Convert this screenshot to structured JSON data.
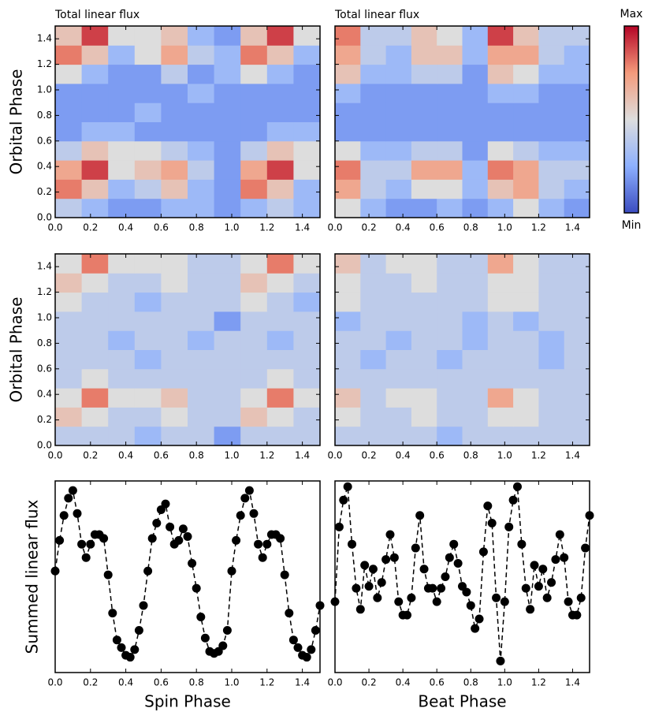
{
  "chart_data": [
    {
      "type": "heatmap",
      "title": "Total linear flux",
      "ylabel": "Orbital Phase",
      "xlim": [
        0,
        1.5
      ],
      "ylim": [
        0,
        1.5
      ],
      "clim": [
        0,
        10
      ],
      "xticks": [
        {
          "value": 0,
          "label": "0.0"
        },
        {
          "value": 0.2,
          "label": "0.2"
        },
        {
          "value": 0.4,
          "label": "0.4"
        },
        {
          "value": 0.6,
          "label": "0.6"
        },
        {
          "value": 0.8,
          "label": "0.8"
        },
        {
          "value": 1,
          "label": "1.0"
        },
        {
          "value": 1.2,
          "label": "1.2"
        },
        {
          "value": 1.4,
          "label": "1.4"
        }
      ],
      "yticks": [
        {
          "value": 0,
          "label": "0.0"
        },
        {
          "value": 0.2,
          "label": "0.2"
        },
        {
          "value": 0.4,
          "label": "0.4"
        },
        {
          "value": 0.6,
          "label": "0.6"
        },
        {
          "value": 0.8,
          "label": "0.8"
        },
        {
          "value": 1,
          "label": "1.0"
        },
        {
          "value": 1.2,
          "label": "1.2"
        },
        {
          "value": 1.4,
          "label": "1.4"
        }
      ],
      "z": [
        [
          4,
          3,
          2,
          2,
          3,
          3,
          2,
          3,
          4,
          3
        ],
        [
          8,
          6,
          3,
          4,
          6,
          3,
          2,
          8,
          6,
          3
        ],
        [
          7,
          9,
          5,
          6,
          7,
          4,
          2,
          7,
          9,
          5
        ],
        [
          4,
          6,
          5,
          5,
          4,
          3,
          2,
          4,
          6,
          5
        ],
        [
          2,
          3,
          3,
          2,
          2,
          2,
          2,
          2,
          3,
          3
        ],
        [
          2,
          2,
          2,
          3,
          2,
          2,
          2,
          2,
          2,
          2
        ],
        [
          2,
          2,
          2,
          2,
          2,
          3,
          2,
          2,
          2,
          2
        ],
        [
          5,
          3,
          2,
          2,
          4,
          2,
          3,
          5,
          3,
          2
        ],
        [
          8,
          6,
          3,
          5,
          7,
          4,
          3,
          8,
          6,
          3
        ],
        [
          6,
          9,
          5,
          5,
          6,
          3,
          2,
          6,
          9,
          5
        ]
      ]
    },
    {
      "type": "heatmap",
      "title": "Total linear flux",
      "xlim": [
        0,
        1.5
      ],
      "ylim": [
        0,
        1.5
      ],
      "clim": [
        0,
        10
      ],
      "xticks": [
        {
          "value": 0,
          "label": "0.0"
        },
        {
          "value": 0.2,
          "label": "0.2"
        },
        {
          "value": 0.4,
          "label": "0.4"
        },
        {
          "value": 0.6,
          "label": "0.6"
        },
        {
          "value": 0.8,
          "label": "0.8"
        },
        {
          "value": 1,
          "label": "1.0"
        },
        {
          "value": 1.2,
          "label": "1.2"
        },
        {
          "value": 1.4,
          "label": "1.4"
        }
      ],
      "yticks": [
        0,
        0.2,
        0.4,
        0.6,
        0.8,
        1,
        1.2,
        1.4
      ],
      "z": [
        [
          5,
          3,
          2,
          2,
          3,
          2,
          3,
          5,
          3,
          2
        ],
        [
          7,
          4,
          3,
          5,
          5,
          3,
          6,
          7,
          4,
          3
        ],
        [
          8,
          4,
          4,
          7,
          7,
          3,
          8,
          7,
          4,
          4
        ],
        [
          5,
          3,
          3,
          4,
          4,
          2,
          5,
          4,
          3,
          3
        ],
        [
          2,
          2,
          2,
          2,
          2,
          2,
          2,
          2,
          2,
          2
        ],
        [
          2,
          2,
          2,
          2,
          2,
          2,
          2,
          2,
          2,
          2
        ],
        [
          3,
          2,
          2,
          2,
          2,
          2,
          3,
          3,
          2,
          2
        ],
        [
          6,
          3,
          3,
          4,
          4,
          2,
          6,
          5,
          3,
          3
        ],
        [
          7,
          4,
          3,
          6,
          6,
          3,
          7,
          7,
          4,
          3
        ],
        [
          8,
          4,
          4,
          6,
          5,
          3,
          9,
          6,
          4,
          4
        ]
      ]
    },
    {
      "type": "heatmap",
      "ylabel": "Orbital Phase",
      "xlim": [
        0,
        1.5
      ],
      "ylim": [
        0,
        1.5
      ],
      "clim": [
        0,
        10
      ],
      "xticks": [
        {
          "value": 0,
          "label": "0.0"
        },
        {
          "value": 0.2,
          "label": "0.2"
        },
        {
          "value": 0.4,
          "label": "0.4"
        },
        {
          "value": 0.6,
          "label": "0.6"
        },
        {
          "value": 0.8,
          "label": "0.8"
        },
        {
          "value": 1,
          "label": "1.0"
        },
        {
          "value": 1.2,
          "label": "1.2"
        },
        {
          "value": 1.4,
          "label": "1.4"
        }
      ],
      "yticks": [
        {
          "value": 0,
          "label": "0.0"
        },
        {
          "value": 0.2,
          "label": "0.2"
        },
        {
          "value": 0.4,
          "label": "0.4"
        },
        {
          "value": 0.6,
          "label": "0.6"
        },
        {
          "value": 0.8,
          "label": "0.8"
        },
        {
          "value": 1,
          "label": "1.0"
        },
        {
          "value": 1.2,
          "label": "1.2"
        },
        {
          "value": 1.4,
          "label": "1.4"
        }
      ],
      "z": [
        [
          4,
          4,
          4,
          3,
          4,
          4,
          2,
          4,
          4,
          4
        ],
        [
          6,
          5,
          4,
          4,
          5,
          4,
          4,
          6,
          5,
          4
        ],
        [
          5,
          8,
          5,
          5,
          6,
          4,
          4,
          5,
          8,
          5
        ],
        [
          4,
          5,
          4,
          4,
          4,
          4,
          4,
          4,
          5,
          4
        ],
        [
          4,
          4,
          4,
          3,
          4,
          4,
          4,
          4,
          4,
          4
        ],
        [
          4,
          4,
          3,
          4,
          4,
          3,
          4,
          4,
          3,
          4
        ],
        [
          4,
          4,
          4,
          4,
          4,
          4,
          2,
          4,
          4,
          4
        ],
        [
          5,
          4,
          4,
          3,
          4,
          4,
          4,
          5,
          4,
          3
        ],
        [
          6,
          5,
          4,
          4,
          5,
          4,
          4,
          6,
          5,
          4
        ],
        [
          5,
          8,
          5,
          5,
          5,
          4,
          4,
          5,
          8,
          5
        ]
      ]
    },
    {
      "type": "heatmap",
      "xlim": [
        0,
        1.5
      ],
      "ylim": [
        0,
        1.5
      ],
      "clim": [
        0,
        10
      ],
      "xticks": [
        {
          "value": 0,
          "label": "0.0"
        },
        {
          "value": 0.2,
          "label": "0.2"
        },
        {
          "value": 0.4,
          "label": "0.4"
        },
        {
          "value": 0.6,
          "label": "0.6"
        },
        {
          "value": 0.8,
          "label": "0.8"
        },
        {
          "value": 1,
          "label": "1.0"
        },
        {
          "value": 1.2,
          "label": "1.2"
        },
        {
          "value": 1.4,
          "label": "1.4"
        }
      ],
      "yticks": [
        0,
        0.2,
        0.4,
        0.6,
        0.8,
        1,
        1.2,
        1.4
      ],
      "z": [
        [
          4,
          4,
          4,
          4,
          3,
          4,
          4,
          4,
          4,
          4
        ],
        [
          5,
          4,
          4,
          5,
          4,
          4,
          5,
          5,
          4,
          4
        ],
        [
          6,
          4,
          5,
          5,
          4,
          4,
          7,
          5,
          4,
          4
        ],
        [
          4,
          4,
          4,
          4,
          4,
          4,
          4,
          4,
          4,
          4
        ],
        [
          4,
          3,
          4,
          4,
          3,
          4,
          4,
          4,
          3,
          4
        ],
        [
          4,
          4,
          3,
          4,
          4,
          3,
          4,
          4,
          3,
          4
        ],
        [
          3,
          4,
          4,
          4,
          4,
          3,
          4,
          3,
          4,
          4
        ],
        [
          5,
          4,
          4,
          4,
          4,
          4,
          5,
          5,
          4,
          4
        ],
        [
          5,
          4,
          4,
          5,
          4,
          4,
          5,
          5,
          4,
          4
        ],
        [
          6,
          4,
          5,
          5,
          4,
          4,
          7,
          5,
          4,
          4
        ]
      ]
    },
    {
      "type": "line",
      "xlabel": "Spin Phase",
      "ylabel": "Summed linear flux",
      "color": "#000000",
      "line_style": "dashed",
      "marker": "circle",
      "xlim": [
        0,
        1.5
      ],
      "ylim": [
        0,
        10
      ],
      "xticks": [
        {
          "value": 0,
          "label": "0.0"
        },
        {
          "value": 0.2,
          "label": "0.2"
        },
        {
          "value": 0.4,
          "label": "0.4"
        },
        {
          "value": 0.6,
          "label": "0.6"
        },
        {
          "value": 0.8,
          "label": "0.8"
        },
        {
          "value": 1,
          "label": "1.0"
        },
        {
          "value": 1.2,
          "label": "1.2"
        },
        {
          "value": 1.4,
          "label": "1.4"
        }
      ],
      "x": [
        0,
        0.025,
        0.05,
        0.075,
        0.1,
        0.125,
        0.15,
        0.175,
        0.2,
        0.225,
        0.25,
        0.275,
        0.3,
        0.325,
        0.35,
        0.375,
        0.4,
        0.425,
        0.45,
        0.475,
        0.5,
        0.525,
        0.55,
        0.575,
        0.6,
        0.625,
        0.65,
        0.675,
        0.7,
        0.725,
        0.75,
        0.775,
        0.8,
        0.825,
        0.85,
        0.875,
        0.9,
        0.925,
        0.95,
        0.975,
        1,
        1.025,
        1.05,
        1.075,
        1.1,
        1.125,
        1.15,
        1.175,
        1.2,
        1.225,
        1.25,
        1.275,
        1.3,
        1.325,
        1.35,
        1.375,
        1.4,
        1.425,
        1.45,
        1.475,
        1.5
      ],
      "values": [
        5.3,
        6.9,
        8.2,
        9.1,
        9.5,
        8.3,
        6.7,
        6.0,
        6.7,
        7.2,
        7.2,
        7.0,
        5.1,
        3.1,
        1.7,
        1.3,
        0.9,
        0.8,
        1.2,
        2.2,
        3.5,
        5.3,
        7.0,
        7.8,
        8.5,
        8.8,
        7.6,
        6.7,
        6.9,
        7.5,
        7.1,
        5.7,
        4.4,
        2.9,
        1.8,
        1.1,
        1.0,
        1.1,
        1.4,
        2.2,
        5.3,
        6.9,
        8.2,
        9.1,
        9.5,
        8.3,
        6.7,
        6.0,
        6.7,
        7.2,
        7.2,
        7.0,
        5.1,
        3.1,
        1.7,
        1.3,
        0.9,
        0.8,
        1.2,
        2.2,
        3.5
      ]
    },
    {
      "type": "line",
      "xlabel": "Beat Phase",
      "color": "#000000",
      "line_style": "dashed",
      "marker": "circle",
      "xlim": [
        0,
        1.5
      ],
      "ylim": [
        0,
        10
      ],
      "xticks": [
        {
          "value": 0,
          "label": "0.0"
        },
        {
          "value": 0.2,
          "label": "0.2"
        },
        {
          "value": 0.4,
          "label": "0.4"
        },
        {
          "value": 0.6,
          "label": "0.6"
        },
        {
          "value": 0.8,
          "label": "0.8"
        },
        {
          "value": 1,
          "label": "1.0"
        },
        {
          "value": 1.2,
          "label": "1.2"
        },
        {
          "value": 1.4,
          "label": "1.4"
        }
      ],
      "x": [
        0,
        0.025,
        0.05,
        0.075,
        0.1,
        0.125,
        0.15,
        0.175,
        0.2,
        0.225,
        0.25,
        0.275,
        0.3,
        0.325,
        0.35,
        0.375,
        0.4,
        0.425,
        0.45,
        0.475,
        0.5,
        0.525,
        0.55,
        0.575,
        0.6,
        0.625,
        0.65,
        0.675,
        0.7,
        0.725,
        0.75,
        0.775,
        0.8,
        0.825,
        0.85,
        0.875,
        0.9,
        0.925,
        0.95,
        0.975,
        1,
        1.025,
        1.05,
        1.075,
        1.1,
        1.125,
        1.15,
        1.175,
        1.2,
        1.225,
        1.25,
        1.275,
        1.3,
        1.325,
        1.35,
        1.375,
        1.4,
        1.425,
        1.45,
        1.475,
        1.5
      ],
      "values": [
        3.7,
        7.6,
        9.0,
        9.7,
        6.7,
        4.4,
        3.3,
        5.6,
        4.5,
        5.4,
        3.9,
        4.7,
        5.9,
        7.2,
        6.0,
        3.7,
        3.0,
        3.0,
        3.9,
        6.5,
        8.2,
        5.4,
        4.4,
        4.4,
        3.7,
        4.4,
        5.0,
        6.0,
        6.7,
        5.7,
        4.5,
        4.2,
        3.5,
        2.3,
        2.8,
        6.3,
        8.7,
        7.8,
        3.9,
        0.6,
        3.7,
        7.6,
        9.0,
        9.7,
        6.7,
        4.4,
        3.3,
        5.6,
        4.5,
        5.4,
        3.9,
        4.7,
        5.9,
        7.2,
        6.0,
        3.7,
        3.0,
        3.0,
        3.9,
        6.5,
        8.2
      ]
    },
    {
      "type": "colorbar",
      "max_label": "Max",
      "min_label": "Min",
      "colormap": [
        "#3b4cc0",
        "#8db0fe",
        "#dddddd",
        "#f49a7b",
        "#b40426"
      ]
    }
  ]
}
